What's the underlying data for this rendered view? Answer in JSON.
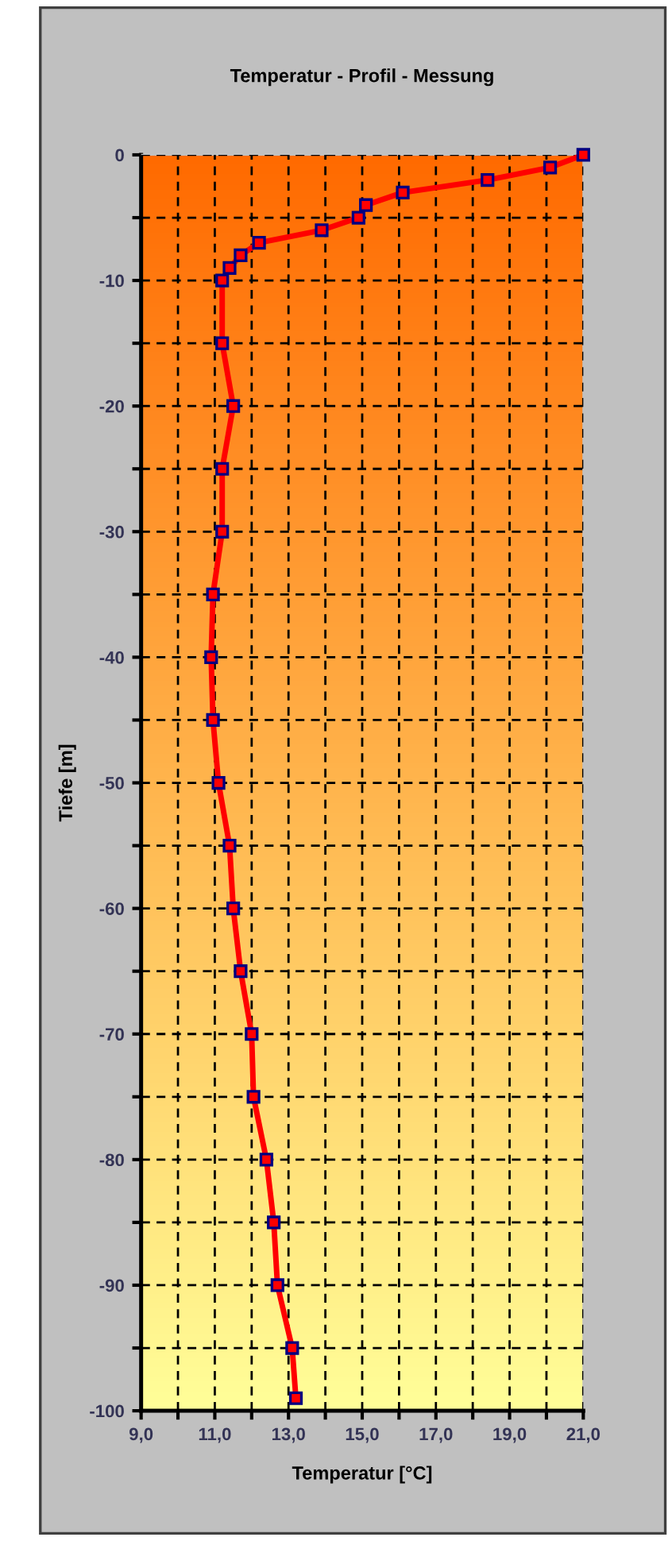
{
  "chart_data": {
    "type": "line",
    "title": "Temperatur - Profil - Messung",
    "xlabel": "Temperatur [°C]",
    "ylabel": "Tiefe [m]",
    "series": [
      {
        "color": "#ff0000",
        "x": [
          21.0,
          20.1,
          18.4,
          16.1,
          15.1,
          14.9,
          13.9,
          12.2,
          11.7,
          11.4,
          11.2,
          11.2,
          11.5,
          11.2,
          11.2,
          10.95,
          10.9,
          10.95,
          11.1,
          11.4,
          11.5,
          11.7,
          12.0,
          12.05,
          12.4,
          12.6,
          12.7,
          13.1,
          13.2
        ],
        "values": [
          0,
          -1,
          -2,
          -3,
          -4,
          -5,
          -6,
          -7,
          -8,
          -9,
          -10,
          -15,
          -20,
          -25,
          -30,
          -35,
          -40,
          -45,
          -50,
          -55,
          -60,
          -65,
          -70,
          -75,
          -80,
          -85,
          -90,
          -95,
          -99
        ]
      }
    ],
    "marker": "square",
    "line_style": "solid",
    "grid": true,
    "xlim": [
      9,
      21
    ],
    "ylim": [
      -100,
      0
    ],
    "xticks": [
      {
        "value": 9,
        "label": "9,0"
      },
      {
        "value": 10,
        "label": null
      },
      {
        "value": 11,
        "label": "11,0"
      },
      {
        "value": 12,
        "label": null
      },
      {
        "value": 13,
        "label": "13,0"
      },
      {
        "value": 14,
        "label": null
      },
      {
        "value": 15,
        "label": "15,0"
      },
      {
        "value": 16,
        "label": null
      },
      {
        "value": 17,
        "label": "17,0"
      },
      {
        "value": 18,
        "label": null
      },
      {
        "value": 19,
        "label": "19,0"
      },
      {
        "value": 20,
        "label": null
      },
      {
        "value": 21,
        "label": "21,0"
      }
    ],
    "yticks": [
      -100,
      {
        "value": -95,
        "label": null
      },
      -90,
      {
        "value": -85,
        "label": null
      },
      -80,
      {
        "value": -75,
        "label": null
      },
      -70,
      {
        "value": -65,
        "label": null
      },
      -60,
      {
        "value": -55,
        "label": null
      },
      -50,
      {
        "value": -45,
        "label": null
      },
      -40,
      {
        "value": -35,
        "label": null
      },
      -30,
      {
        "value": -25,
        "label": null
      },
      -20,
      {
        "value": -15,
        "label": null
      },
      -10,
      {
        "value": -5,
        "label": null
      },
      0
    ]
  }
}
